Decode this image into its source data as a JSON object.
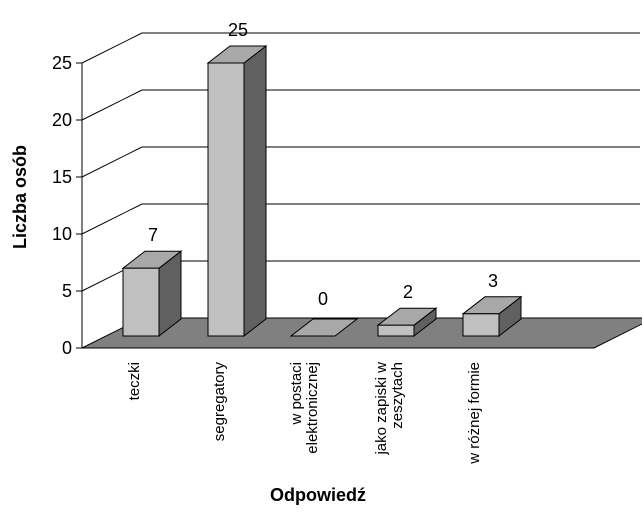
{
  "chart_data": {
    "type": "bar",
    "style": "3d",
    "title": "",
    "xlabel": "Odpowiedź",
    "ylabel": "Liczba osób",
    "ylim": [
      0,
      25
    ],
    "yticks": [
      0,
      5,
      10,
      15,
      20,
      25
    ],
    "grid": true,
    "legend": false,
    "categories": [
      [
        "teczki"
      ],
      [
        "segregatory"
      ],
      [
        "w postaci",
        "elektronicznej"
      ],
      [
        "jako zapiski w",
        "zeszytach"
      ],
      [
        "w różnej formie"
      ]
    ],
    "values": [
      7,
      25,
      0,
      2,
      3
    ],
    "data_labels": [
      "7",
      "25",
      "0",
      "2",
      "3"
    ],
    "colors": {
      "bar_front": "#c0c0c0",
      "bar_side": "#606060",
      "bar_top": "#a8a8a8",
      "floor": "#808080",
      "grid": "#000000"
    }
  }
}
